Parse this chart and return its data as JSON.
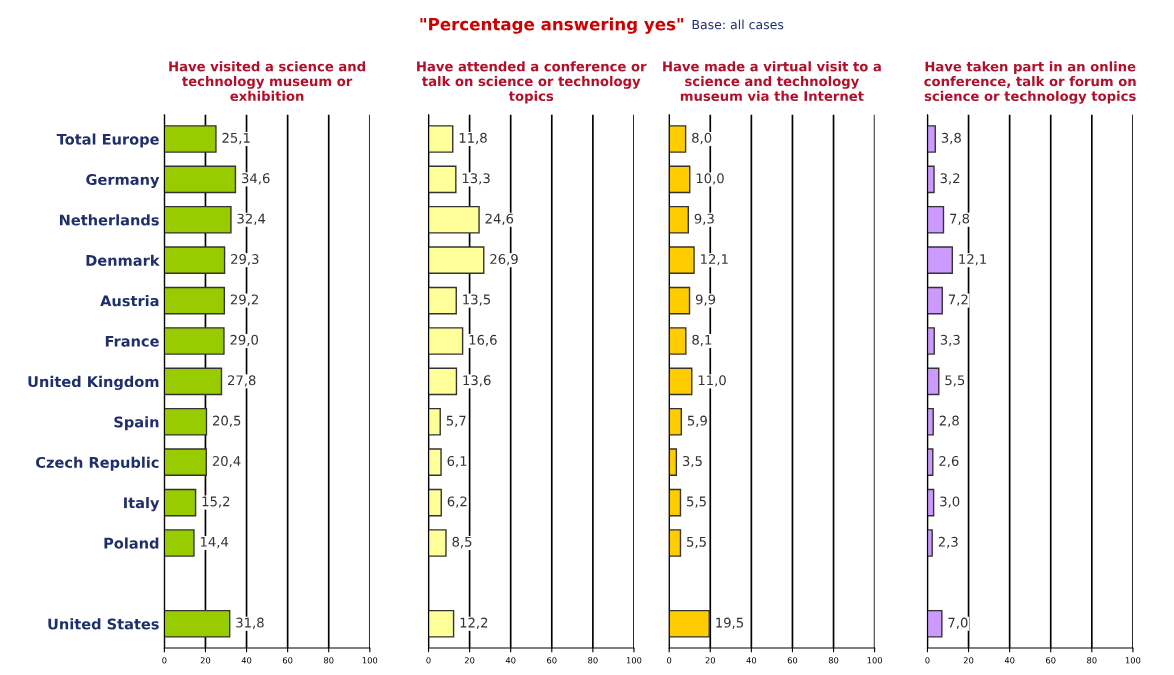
{
  "chart_data": [
    {
      "type": "bar",
      "orientation": "horizontal",
      "title": "Have visited a science and technology museum or exhibition",
      "annotations": [
        "\"Percentage answering yes\"",
        "Base: all cases"
      ],
      "categories": [
        "Total Europe",
        "Germany",
        "Netherlands",
        "Denmark",
        "Austria",
        "France",
        "United Kingdom",
        "Spain",
        "Czech Republic",
        "Italy",
        "Poland",
        null,
        "United States"
      ],
      "values": [
        25.1,
        34.6,
        32.4,
        29.3,
        29.2,
        29.0,
        27.8,
        20.5,
        20.4,
        15.2,
        14.4,
        null,
        31.8
      ],
      "value_labels": [
        "25,1",
        "34,6",
        "32,4",
        "29,3",
        "29,2",
        "29,0",
        "27,8",
        "20,5",
        "20,4",
        "15,2",
        "14,4",
        null,
        "31,8"
      ],
      "color": "#99cc00",
      "xlim": [
        0,
        100
      ],
      "xticks": [
        0,
        20,
        40,
        60,
        80,
        100
      ],
      "grid": "x"
    },
    {
      "type": "bar",
      "orientation": "horizontal",
      "title": "Have attended a conference or talk on science or technology topics",
      "values": [
        11.8,
        13.3,
        24.6,
        26.9,
        13.5,
        16.6,
        13.6,
        5.7,
        6.1,
        6.2,
        8.5,
        null,
        12.2
      ],
      "value_labels": [
        "11,8",
        "13,3",
        "24,6",
        "26,9",
        "13,5",
        "16,6",
        "13,6",
        "5,7",
        "6,1",
        "6,2",
        "8,5",
        null,
        "12,2"
      ],
      "color": "#ffff99",
      "xlim": [
        0,
        100
      ],
      "xticks": [
        0,
        20,
        40,
        60,
        80,
        100
      ],
      "grid": "x",
      "tick_labels": "x"
    },
    {
      "type": "bar",
      "orientation": "horizontal",
      "title": "Have made a virtual visit to a science and technology museum via the Internet",
      "values": [
        8.0,
        10.0,
        9.3,
        12.1,
        9.9,
        8.1,
        11.0,
        5.9,
        3.5,
        5.5,
        5.5,
        null,
        19.5
      ],
      "value_labels": [
        "8,0",
        "10,0",
        "9,3",
        "12,1",
        "9,9",
        "8,1",
        "11,0",
        "5,9",
        "3,5",
        "5,5",
        "5,5",
        null,
        "19,5"
      ],
      "color": "#ffcc00",
      "xlim": [
        0,
        100
      ],
      "xticks": [
        0,
        20,
        40,
        60,
        80,
        100
      ],
      "grid": "x",
      "tick_labels": "x"
    },
    {
      "type": "bar",
      "orientation": "horizontal",
      "title": "Have taken part in an online conference, talk or forum on science or technology topics",
      "values": [
        3.8,
        3.2,
        7.8,
        12.1,
        7.2,
        3.3,
        5.5,
        2.8,
        2.6,
        3.0,
        2.3,
        null,
        7.0
      ],
      "value_labels": [
        "3,8",
        "3,2",
        "7,8",
        "12,1",
        "7,2",
        "3,3",
        "5,5",
        "2,8",
        "2,6",
        "3,0",
        "2,3",
        null,
        "7,0"
      ],
      "color": "#cc99ff",
      "xlim": [
        0,
        100
      ],
      "xticks": [
        0,
        20,
        40,
        60,
        80,
        100
      ],
      "grid": "x",
      "tick_labels": "x"
    }
  ]
}
